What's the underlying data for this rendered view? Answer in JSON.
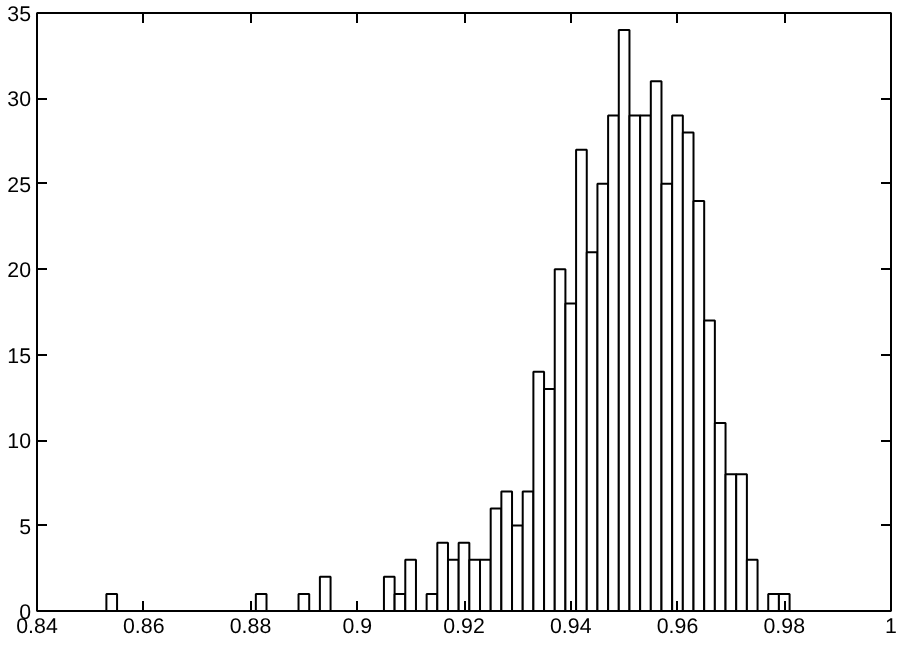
{
  "chart_data": {
    "type": "histogram",
    "bins": [
      0.853,
      0.855,
      0.857,
      0.859,
      0.861,
      0.863,
      0.865,
      0.867,
      0.869,
      0.871,
      0.873,
      0.875,
      0.877,
      0.879,
      0.881,
      0.883,
      0.885,
      0.887,
      0.889,
      0.891,
      0.893,
      0.895,
      0.897,
      0.899,
      0.901,
      0.903,
      0.905,
      0.907,
      0.909,
      0.911,
      0.913,
      0.915,
      0.917,
      0.919,
      0.921,
      0.923,
      0.925,
      0.927,
      0.929,
      0.931,
      0.933,
      0.935,
      0.937,
      0.939,
      0.941,
      0.943,
      0.945,
      0.947,
      0.949,
      0.951,
      0.953,
      0.955,
      0.957,
      0.959,
      0.961,
      0.963,
      0.965,
      0.967,
      0.969,
      0.971,
      0.973,
      0.975,
      0.977,
      0.979,
      0.981
    ],
    "values": [
      1,
      0,
      0,
      0,
      0,
      0,
      0,
      0,
      0,
      0,
      0,
      0,
      0,
      0,
      1,
      0,
      0,
      0,
      1,
      0,
      2,
      0,
      0,
      0,
      0,
      0,
      2,
      1,
      3,
      0,
      1,
      4,
      3,
      4,
      3,
      3,
      6,
      7,
      5,
      7,
      14,
      13,
      20,
      18,
      27,
      21,
      25,
      29,
      34,
      29,
      29,
      31,
      25,
      29,
      28,
      24,
      17,
      11,
      8,
      8,
      3,
      0,
      1,
      1
    ],
    "color": "#ffffff",
    "xlim": [
      0.84,
      1
    ],
    "ylim": [
      0,
      35
    ],
    "xticks": [
      0.84,
      0.86,
      0.88,
      0.9,
      0.92,
      0.94,
      0.96,
      0.98,
      1
    ],
    "yticks": [
      0,
      5,
      10,
      15,
      20,
      25,
      30,
      35
    ],
    "grid": false
  }
}
